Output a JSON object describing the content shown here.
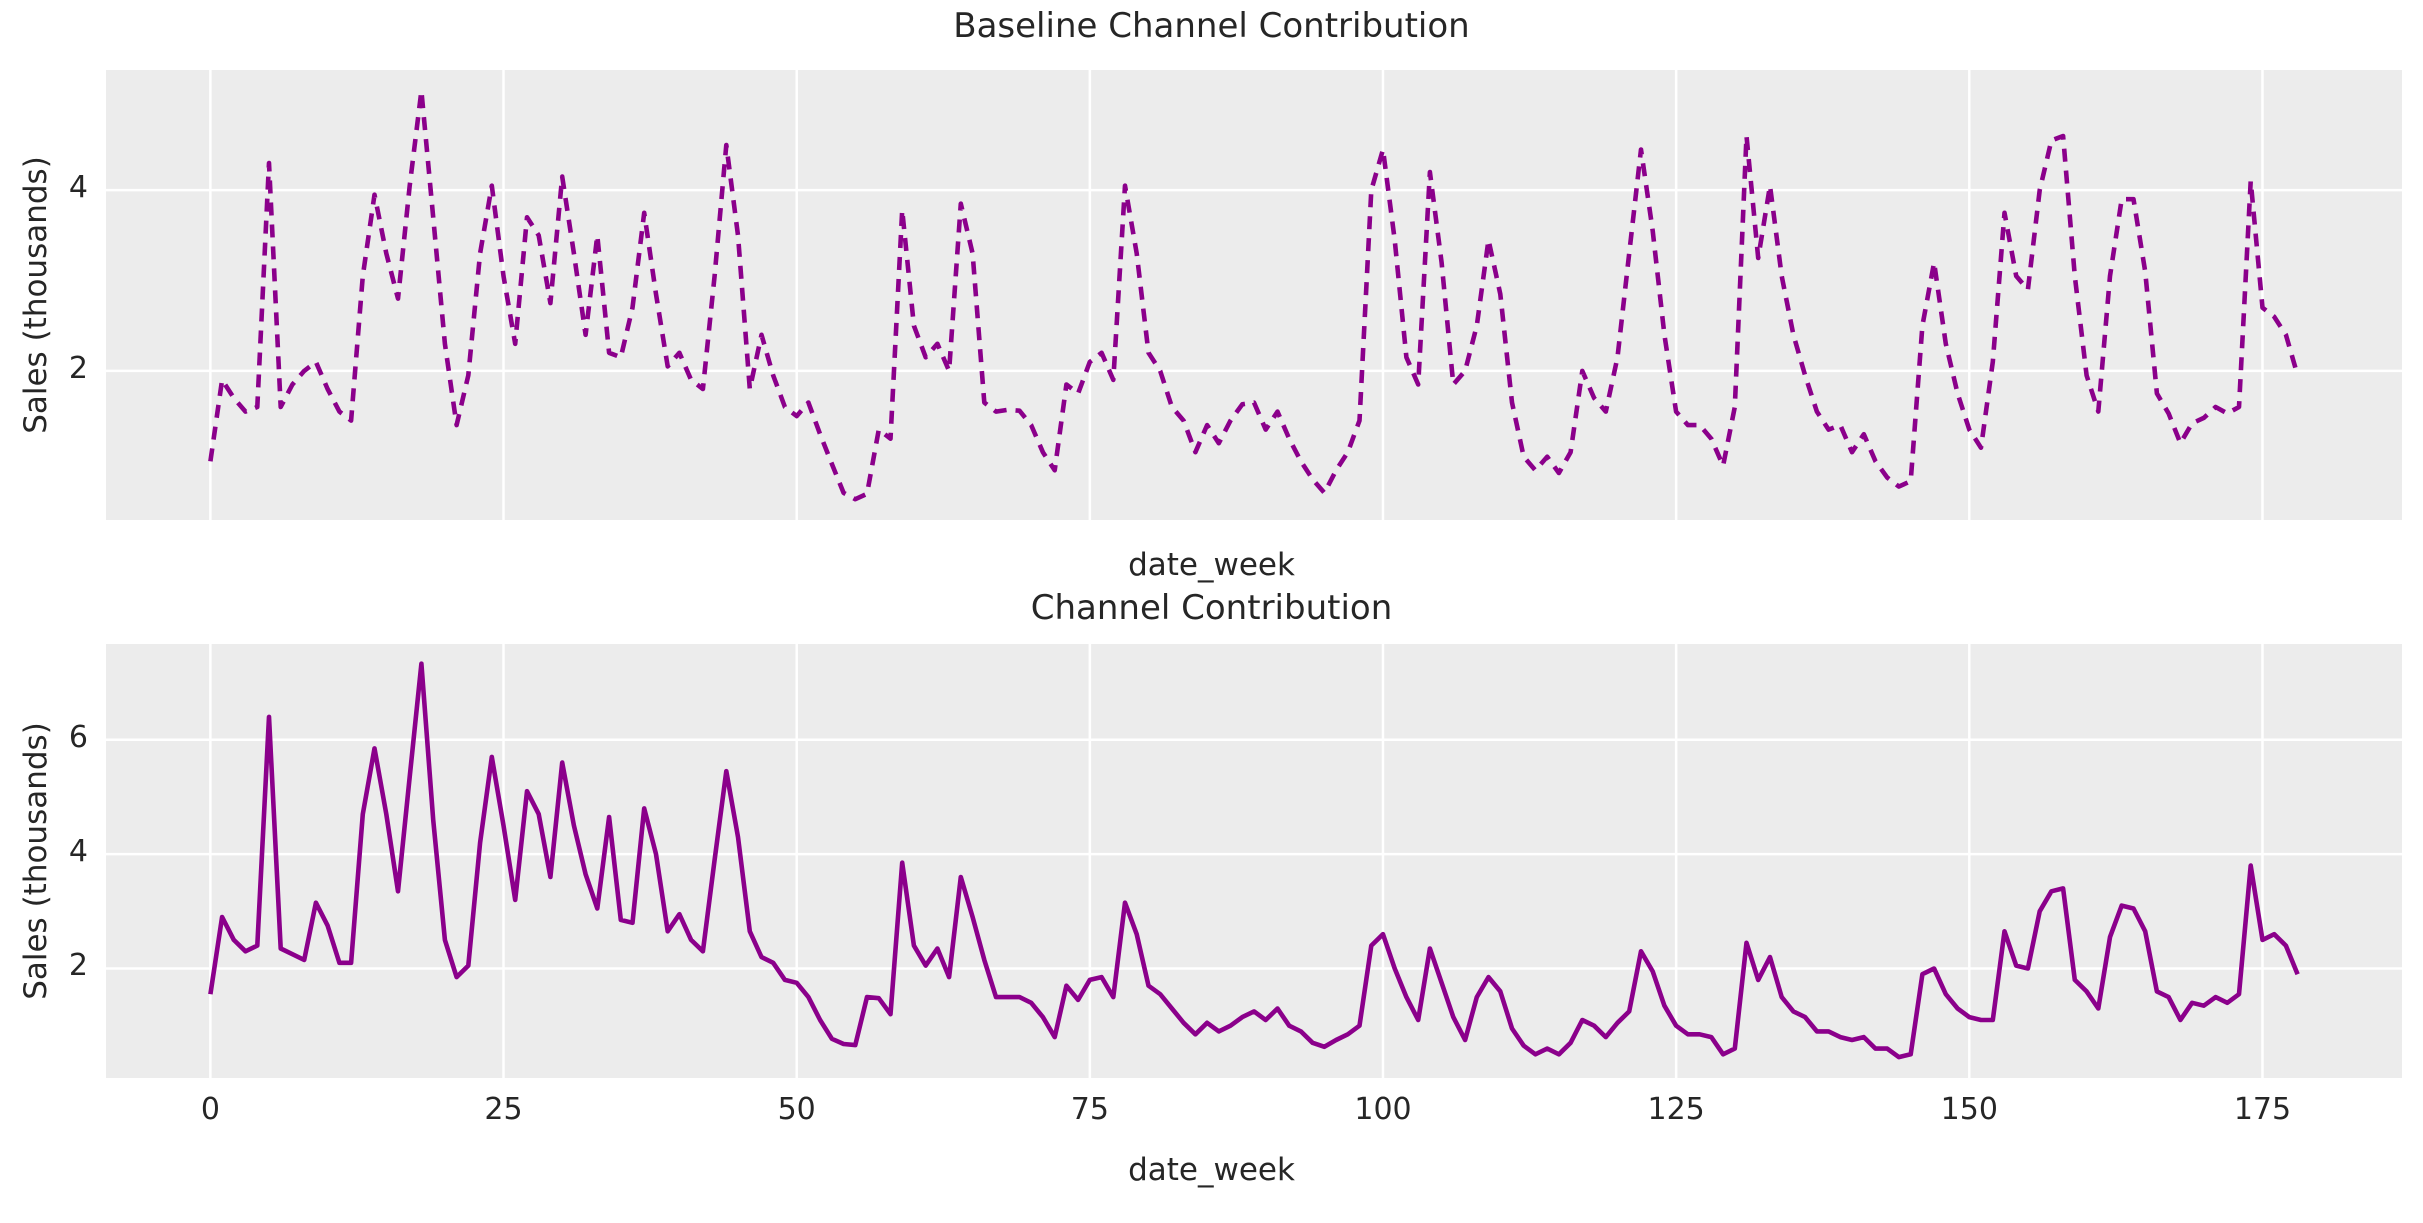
{
  "figure": {
    "background": "#ffffff",
    "panel_background": "#ececec",
    "grid_color": "#ffffff",
    "line_color": "#8b008b",
    "text_color": "#262626"
  },
  "chart_data": [
    {
      "type": "line",
      "title": "Baseline Channel Contribution",
      "xlabel": "date_week",
      "ylabel": "Sales (thousands)",
      "line_style": "dashed",
      "legend_position": "none",
      "grid": true,
      "x_start": 0,
      "x_step": 1,
      "xticks": [
        0,
        25,
        50,
        75,
        100,
        125,
        150,
        175
      ],
      "show_xtick_labels": false,
      "yticks": [
        2,
        4
      ],
      "xlim": [
        -8.9,
        186.9
      ],
      "ylim": [
        0.35,
        5.33
      ],
      "values": [
        1.0,
        1.9,
        1.7,
        1.55,
        1.6,
        4.3,
        1.6,
        1.85,
        2.0,
        2.1,
        1.8,
        1.55,
        1.45,
        3.05,
        3.95,
        3.3,
        2.8,
        4.05,
        5.1,
        3.7,
        2.3,
        1.4,
        1.95,
        3.3,
        4.05,
        3.05,
        2.3,
        3.7,
        3.5,
        2.75,
        4.15,
        3.3,
        2.4,
        3.5,
        2.2,
        2.15,
        2.7,
        3.75,
        2.85,
        2.05,
        2.2,
        1.9,
        1.8,
        3.05,
        4.5,
        3.5,
        1.8,
        2.4,
        1.95,
        1.6,
        1.5,
        1.65,
        1.3,
        0.97,
        0.65,
        0.58,
        0.64,
        1.35,
        1.25,
        3.78,
        2.5,
        2.15,
        2.3,
        2.0,
        3.85,
        3.3,
        1.65,
        1.55,
        1.57,
        1.56,
        1.4,
        1.1,
        0.9,
        1.85,
        1.75,
        2.1,
        2.2,
        1.9,
        4.05,
        3.3,
        2.2,
        2.0,
        1.6,
        1.45,
        1.1,
        1.4,
        1.2,
        1.45,
        1.63,
        1.65,
        1.35,
        1.55,
        1.25,
        1.0,
        0.8,
        0.65,
        0.9,
        1.1,
        1.45,
        4.0,
        4.45,
        3.45,
        2.15,
        1.85,
        4.2,
        3.2,
        1.85,
        2.0,
        2.5,
        3.45,
        2.85,
        1.65,
        1.05,
        0.9,
        1.05,
        0.87,
        1.1,
        2.0,
        1.7,
        1.55,
        2.15,
        3.3,
        4.45,
        3.55,
        2.4,
        1.55,
        1.4,
        1.4,
        1.25,
        0.95,
        1.6,
        4.6,
        3.25,
        4.05,
        3.05,
        2.4,
        1.95,
        1.55,
        1.35,
        1.4,
        1.1,
        1.3,
        1.0,
        0.82,
        0.72,
        0.78,
        2.5,
        3.2,
        2.3,
        1.75,
        1.35,
        1.15,
        2.1,
        3.75,
        3.05,
        2.9,
        4.0,
        4.55,
        4.6,
        3.05,
        1.95,
        1.55,
        3.05,
        3.9,
        3.9,
        3.1,
        1.75,
        1.53,
        1.2,
        1.42,
        1.48,
        1.6,
        1.53,
        1.6,
        4.1,
        2.7,
        2.6,
        2.4,
        1.95
      ]
    },
    {
      "type": "line",
      "title": "Channel Contribution",
      "xlabel": "date_week",
      "ylabel": "Sales (thousands)",
      "line_style": "solid",
      "legend_position": "none",
      "grid": true,
      "x_start": 0,
      "x_step": 1,
      "xticks": [
        0,
        25,
        50,
        75,
        100,
        125,
        150,
        175
      ],
      "show_xtick_labels": true,
      "yticks": [
        2,
        4,
        6
      ],
      "xlim": [
        -8.9,
        186.9
      ],
      "ylim": [
        0.085,
        7.675
      ],
      "values": [
        1.55,
        2.9,
        2.5,
        2.3,
        2.4,
        6.4,
        2.35,
        2.25,
        2.15,
        3.15,
        2.75,
        2.1,
        2.1,
        4.7,
        5.85,
        4.7,
        3.35,
        5.35,
        7.33,
        4.6,
        2.5,
        1.85,
        2.05,
        4.2,
        5.7,
        4.5,
        3.2,
        5.1,
        4.7,
        3.6,
        5.6,
        4.5,
        3.65,
        3.05,
        4.65,
        2.85,
        2.8,
        4.8,
        4.0,
        2.65,
        2.95,
        2.5,
        2.3,
        3.9,
        5.45,
        4.3,
        2.65,
        2.2,
        2.1,
        1.8,
        1.75,
        1.5,
        1.1,
        0.77,
        0.68,
        0.66,
        1.5,
        1.48,
        1.2,
        3.85,
        2.4,
        2.05,
        2.35,
        1.85,
        3.6,
        2.9,
        2.15,
        1.5,
        1.5,
        1.5,
        1.4,
        1.15,
        0.8,
        1.7,
        1.45,
        1.8,
        1.85,
        1.5,
        3.15,
        2.6,
        1.7,
        1.55,
        1.3,
        1.05,
        0.85,
        1.05,
        0.9,
        1.0,
        1.15,
        1.25,
        1.1,
        1.3,
        1.0,
        0.9,
        0.7,
        0.63,
        0.75,
        0.85,
        1.0,
        2.4,
        2.6,
        2.0,
        1.5,
        1.1,
        2.35,
        1.75,
        1.15,
        0.75,
        1.5,
        1.85,
        1.6,
        0.95,
        0.65,
        0.5,
        0.6,
        0.5,
        0.7,
        1.1,
        1.0,
        0.8,
        1.05,
        1.25,
        2.3,
        1.95,
        1.35,
        1.0,
        0.85,
        0.85,
        0.8,
        0.5,
        0.6,
        2.45,
        1.8,
        2.2,
        1.5,
        1.25,
        1.15,
        0.9,
        0.9,
        0.8,
        0.75,
        0.8,
        0.6,
        0.6,
        0.45,
        0.5,
        1.9,
        2.0,
        1.55,
        1.3,
        1.15,
        1.1,
        1.1,
        2.65,
        2.05,
        2.0,
        3.0,
        3.35,
        3.4,
        1.8,
        1.6,
        1.3,
        2.55,
        3.1,
        3.05,
        2.65,
        1.6,
        1.5,
        1.1,
        1.4,
        1.35,
        1.5,
        1.4,
        1.55,
        3.8,
        2.5,
        2.6,
        2.4,
        1.9
      ]
    }
  ]
}
